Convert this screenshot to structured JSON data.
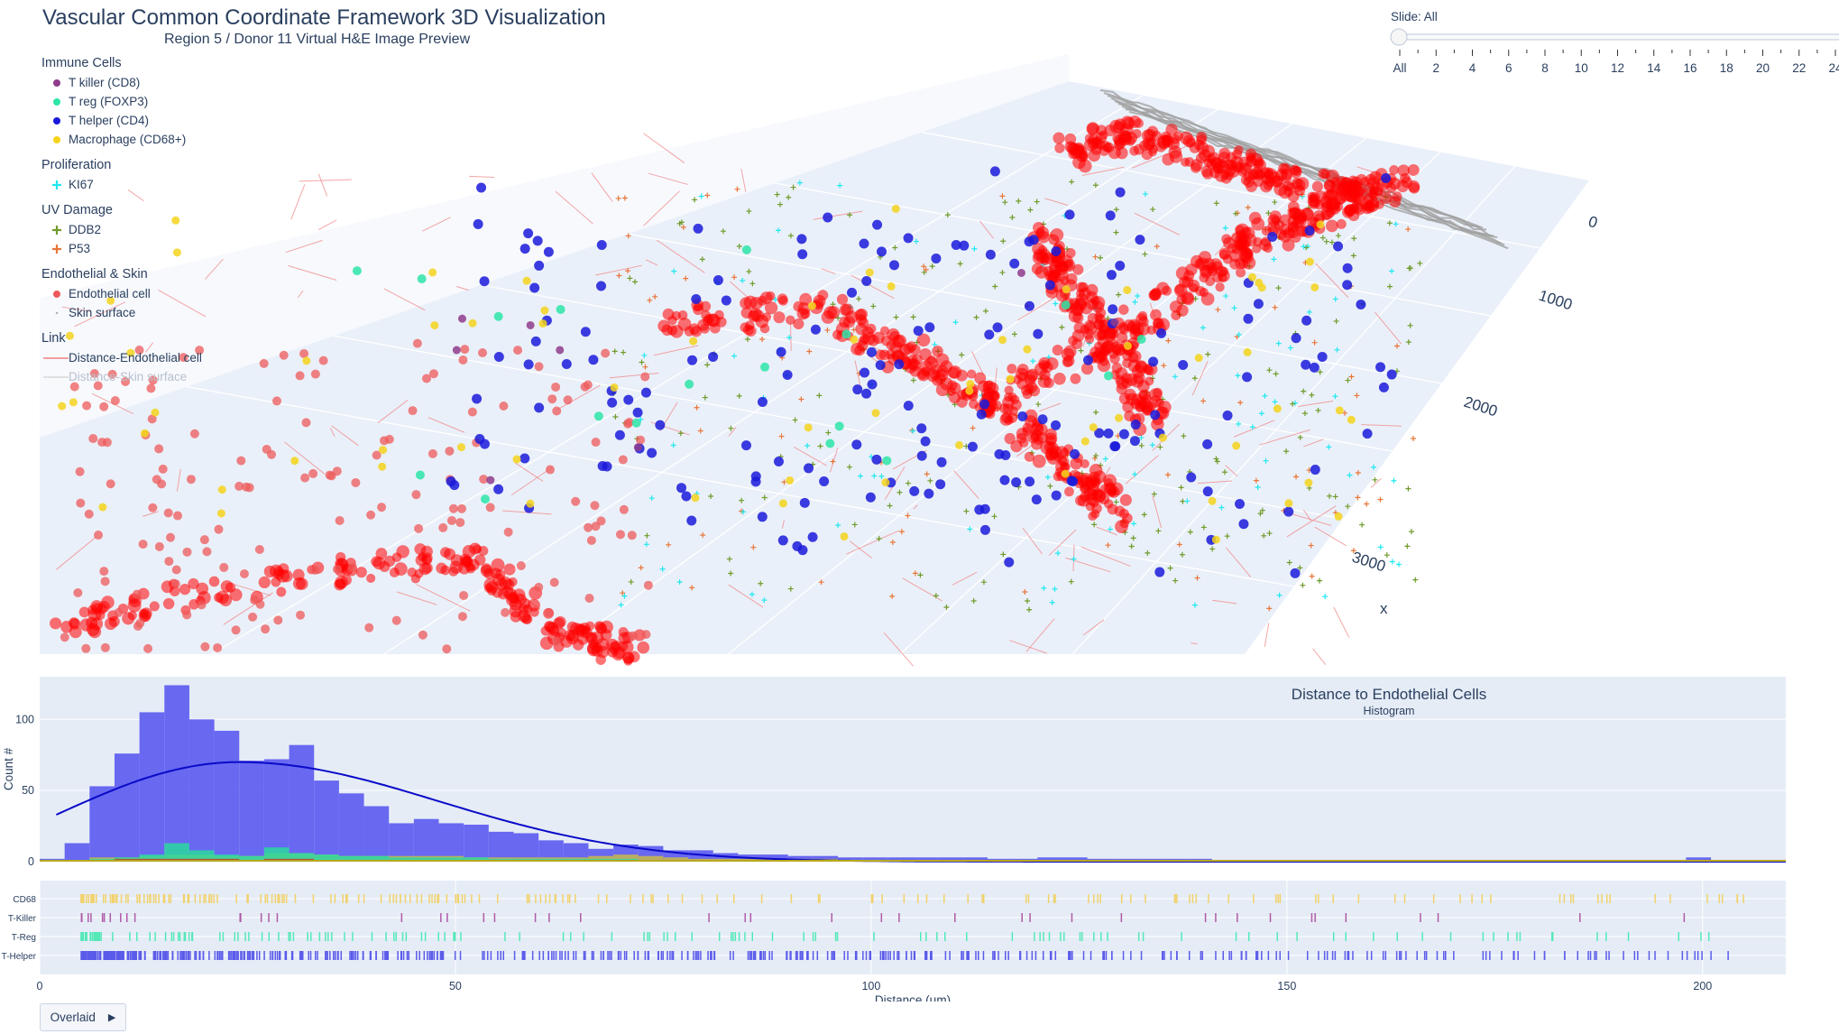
{
  "header": {
    "title": "Vascular Common Coordinate Framework 3D Visualization",
    "subtitle": "Region 5 / Donor 11  Virtual H&E Image Preview"
  },
  "legend": {
    "groups": [
      {
        "title": "Immune Cells",
        "items": [
          {
            "label": "T killer (CD8)",
            "symbol": "dot",
            "color": "#8e3c8c"
          },
          {
            "label": "T reg (FOXP3)",
            "symbol": "dot",
            "color": "#2de5a8"
          },
          {
            "label": "T helper (CD4)",
            "symbol": "dot",
            "color": "#1a1adb"
          },
          {
            "label": "Macrophage (CD68+)",
            "symbol": "dot",
            "color": "#f5d31c"
          }
        ]
      },
      {
        "title": "Proliferation",
        "items": [
          {
            "label": "KI67",
            "symbol": "cross",
            "color": "#22e8f0"
          }
        ]
      },
      {
        "title": "UV Damage",
        "items": [
          {
            "label": "DDB2",
            "symbol": "cross",
            "color": "#6f9b2b"
          },
          {
            "label": "P53",
            "symbol": "cross",
            "color": "#e8763a"
          }
        ]
      },
      {
        "title": "Endothelial & Skin",
        "items": [
          {
            "label": "Endothelial cell",
            "symbol": "dot",
            "color": "#ee5a5a"
          },
          {
            "label": "Skin surface",
            "symbol": "smalldot",
            "color": "#b0b0b0"
          }
        ]
      },
      {
        "title": "Link",
        "items": [
          {
            "label": "Distance-Endothelial cell",
            "symbol": "line",
            "color": "#f08080",
            "muted": false
          },
          {
            "label": "Distance-Skin surface",
            "symbol": "line",
            "color": "#d8d8d8",
            "muted": true
          }
        ]
      }
    ]
  },
  "slider": {
    "label": "Slide: All",
    "ticks": [
      "All",
      "2",
      "4",
      "6",
      "8",
      "10",
      "12",
      "14",
      "16",
      "18",
      "20",
      "22",
      "24"
    ],
    "value": "All"
  },
  "scene": {
    "axis_title": "x",
    "x_ticks": [
      "0",
      "1000",
      "2000",
      "3000"
    ],
    "colors": {
      "endothelial": "#ff0000",
      "helper": "#1a1adb",
      "macrophage": "#f5d31c",
      "treg": "#2de5a8",
      "killer": "#8e3c8c",
      "ddb2": "#6f9b2b",
      "p53": "#e8763a",
      "ki67": "#22e8f0",
      "skin": "#a0a0a0"
    }
  },
  "controls": {
    "overlaid_label": "Overlaid",
    "play_icon": "play-triangle-icon"
  },
  "chart_data": [
    {
      "type": "bar",
      "title": "Distance to Endothelial Cells",
      "subtitle": "Histogram",
      "xlabel": "Distance (µm)",
      "ylabel": "Count #",
      "xlim": [
        0,
        210
      ],
      "ylim": [
        0,
        130
      ],
      "x_ticks": [
        0,
        50,
        100,
        150,
        200
      ],
      "y_ticks": [
        0,
        50,
        100
      ],
      "bin_width": 3,
      "bin_start": 0,
      "series": [
        {
          "name": "T-Helper",
          "color": "#6161f0",
          "values": [
            2,
            13,
            53,
            76,
            105,
            124,
            100,
            92,
            71,
            72,
            82,
            57,
            48,
            39,
            27,
            30,
            27,
            26,
            21,
            20,
            15,
            13,
            9,
            12,
            11,
            8,
            8,
            6,
            5,
            5,
            4,
            4,
            3,
            3,
            3,
            3,
            3,
            3,
            2,
            2,
            3,
            3,
            2,
            2,
            2,
            2,
            2,
            1,
            1,
            1,
            1,
            1,
            1,
            1,
            1,
            1,
            1,
            1,
            1,
            1,
            1,
            1,
            1,
            1,
            1,
            1,
            3,
            1,
            1,
            1
          ]
        },
        {
          "name": "CD68",
          "color": "#c9b84a",
          "values": [
            0,
            1,
            3,
            3,
            4,
            5,
            5,
            4,
            4,
            6,
            6,
            5,
            4,
            4,
            4,
            4,
            4,
            3,
            3,
            3,
            3,
            3,
            4,
            5,
            4,
            3,
            2,
            2,
            2,
            2,
            2,
            2,
            1,
            1,
            1,
            1,
            1,
            1,
            1,
            1,
            1,
            1,
            1,
            1,
            1,
            1,
            1,
            1,
            1,
            1,
            1,
            1,
            1,
            1,
            1,
            1,
            1,
            1,
            1,
            1,
            1,
            1,
            1,
            1,
            1,
            1,
            1,
            1,
            1,
            1
          ]
        },
        {
          "name": "T-Reg",
          "color": "#2ad9a0",
          "values": [
            0,
            1,
            2,
            3,
            5,
            13,
            8,
            5,
            4,
            10,
            6,
            5,
            4,
            4,
            3,
            3,
            3,
            3,
            2,
            2,
            2,
            2,
            2,
            2,
            1,
            1,
            1,
            1,
            1,
            1,
            1,
            1,
            1,
            1,
            1,
            1,
            0,
            0,
            0,
            0,
            0,
            0,
            0,
            0,
            0,
            0,
            0,
            0,
            0,
            0,
            0,
            0,
            0,
            0,
            0,
            0,
            0,
            0,
            0,
            0,
            0,
            0,
            0,
            0,
            0,
            0,
            0,
            0,
            0,
            0
          ]
        },
        {
          "name": "T-Killer",
          "color": "#c0392b",
          "values": [
            0,
            1,
            1,
            2,
            2,
            2,
            2,
            2,
            1,
            2,
            2,
            1,
            1,
            1,
            1,
            1,
            1,
            1,
            1,
            1,
            1,
            1,
            1,
            1,
            1,
            0,
            0,
            0,
            0,
            0,
            0,
            0,
            0,
            0,
            0,
            0,
            0,
            0,
            0,
            0,
            0,
            0,
            0,
            0,
            0,
            0,
            0,
            0,
            0,
            0,
            0,
            0,
            0,
            0,
            0,
            0,
            0,
            0,
            0,
            0,
            0,
            0,
            0,
            0,
            0,
            0,
            0,
            0,
            0,
            0
          ]
        }
      ],
      "fit_curve": {
        "color": "#0a0ac8",
        "peak_x": 24,
        "peak_y": 70,
        "start_y": 33,
        "sigma_left": 16,
        "sigma_right": 24
      }
    },
    {
      "type": "rug",
      "rows": [
        "CD68",
        "T-Killer",
        "T-Reg",
        "T-Helper"
      ],
      "colors": [
        "#f2d16b",
        "#b05aa8",
        "#55e8b8",
        "#5b5bea"
      ]
    }
  ]
}
